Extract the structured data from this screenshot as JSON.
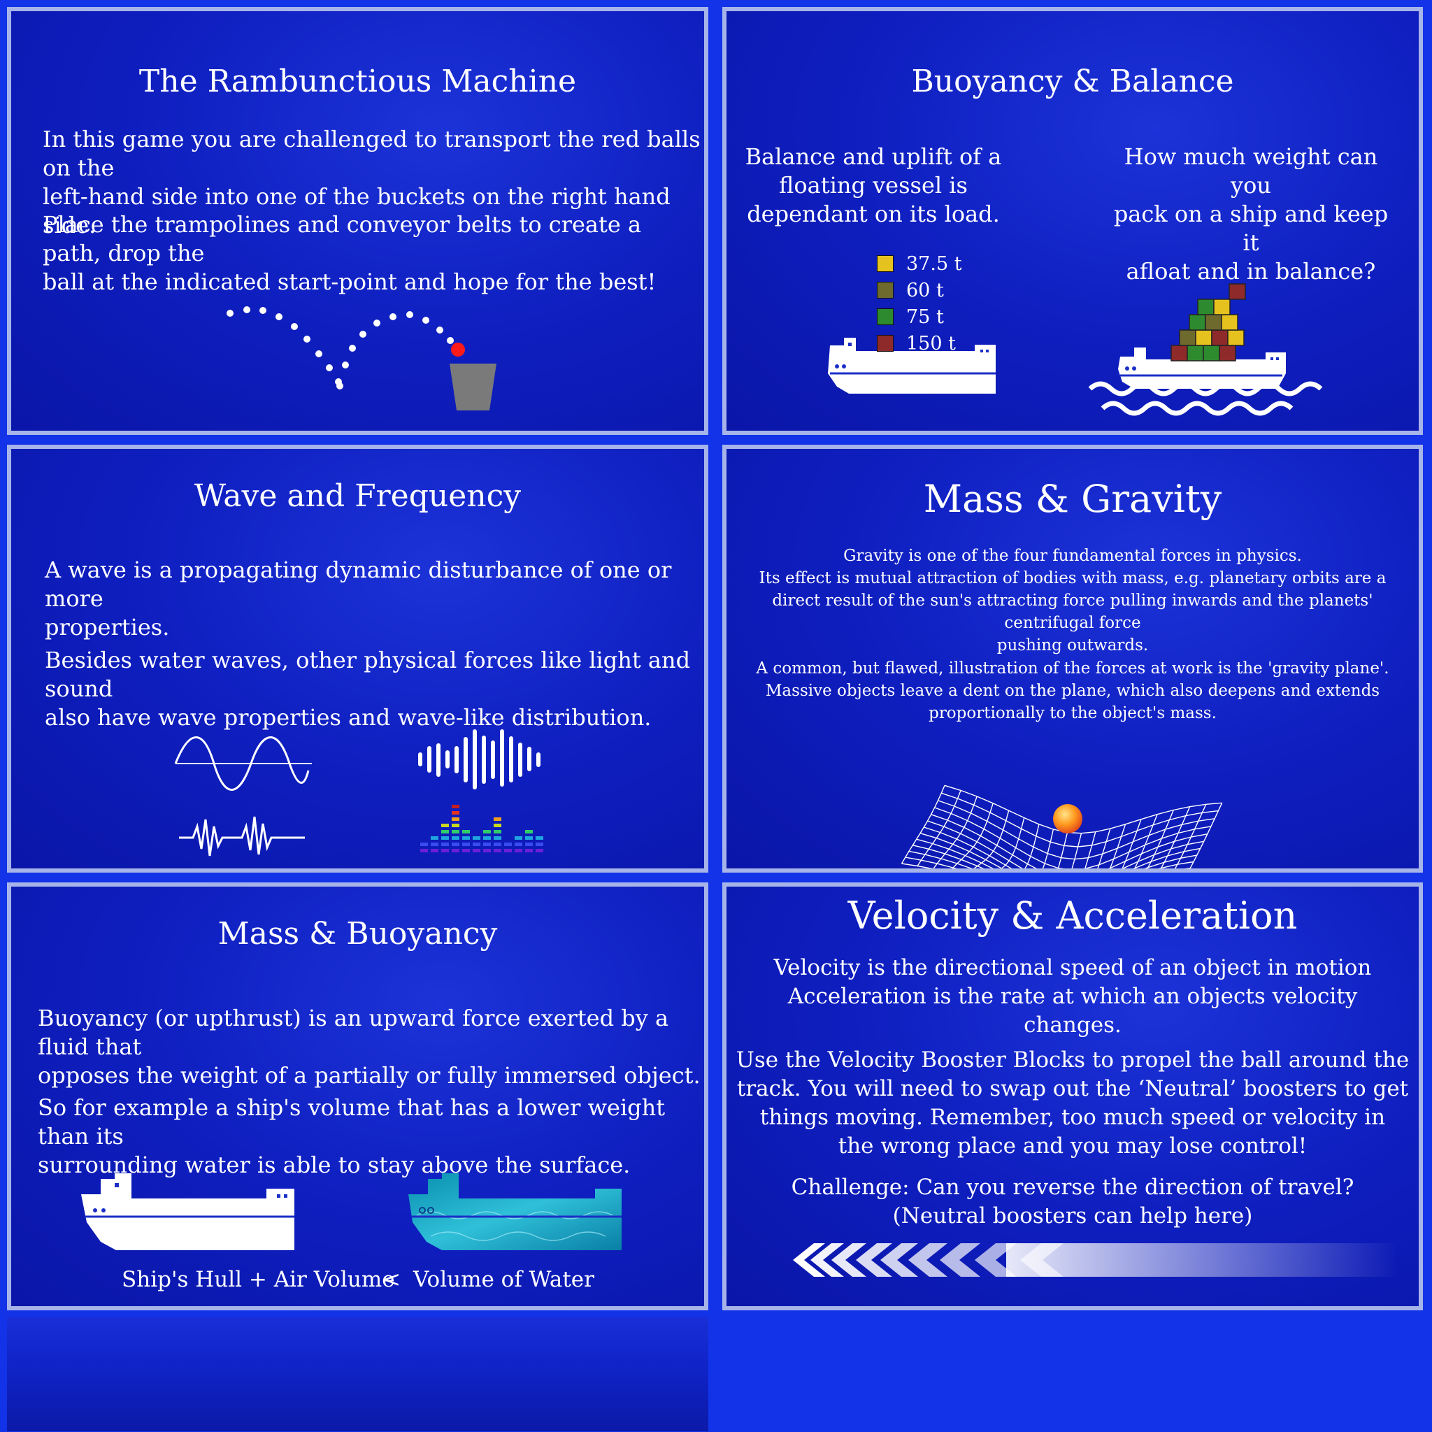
{
  "panels": {
    "rambunctious": {
      "title": "The Rambunctious Machine",
      "p1": "In this game you are challenged to transport the red balls on the\n left-hand side into one of the buckets on the right hand side.",
      "p2": "Place the trampolines and conveyor belts to create a path, drop the\nball at the indicated start-point and hope for the best!"
    },
    "buoyancy_balance": {
      "title": "Buoyancy &  Balance",
      "left_text": "Balance and uplift of a\nfloating vessel is\ndependant on its load.",
      "right_text": "How much weight can you\npack on a ship and keep it\nafloat and in balance?",
      "legend": [
        {
          "label": "37.5 t",
          "color": "#e6c21f"
        },
        {
          "label": "60 t",
          "color": "#6e6a2e"
        },
        {
          "label": "75 t",
          "color": "#2e8a2e"
        },
        {
          "label": "150 t",
          "color": "#8e2a2a"
        }
      ]
    },
    "wave": {
      "title": "Wave and Frequency",
      "p1": "A wave is a propagating dynamic disturbance of one or more\n properties.",
      "p2": "Besides water waves, other physical forces like light and sound\nalso have wave properties and wave-like distribution."
    },
    "mass_gravity": {
      "title": "Mass & Gravity",
      "p1": "Gravity is one of the four fundamental forces in physics.\nIts effect is mutual attraction of bodies with mass, e.g. planetary orbits are a\ndirect result of the sun's attracting force pulling inwards and the planets' centrifugal force\npushing outwards.",
      "p2": "A common, but flawed, illustration of the forces at work is the 'gravity plane'.\nMassive objects leave a dent on the plane, which also deepens and extends\nproportionally to the object's mass."
    },
    "mass_buoyancy": {
      "title": "Mass & Buoyancy",
      "p1": "Buoyancy (or upthrust) is an upward force exerted by a fluid that\n opposes the weight of a partially or fully immersed object.",
      "p2": "So for example a ship's volume that has a lower weight than its\n surrounding water is able to stay above the surface.",
      "caption_left": "Ship's Hull + Air Volume",
      "caption_op": "<",
      "caption_right": "Volume of Water"
    },
    "velocity": {
      "title": "Velocity & Acceleration",
      "p1": "Velocity is the directional speed of an object in motion\nAcceleration is the rate at which an objects velocity\nchanges.",
      "p2": "Use the Velocity Booster Blocks to propel the ball around the\ntrack. You will need to swap out the ‘Neutral’ boosters to get\nthings moving. Remember, too much speed or velocity in\nthe wrong place and you may lose control!",
      "p3": "Challenge: Can you reverse the direction of travel?\n(Neutral boosters can help here)"
    }
  },
  "colors": {
    "background": "#1233e8",
    "panel_border": "#a7b4ea",
    "ball": "#ff1a1a",
    "bucket": "#7a7a7a"
  }
}
